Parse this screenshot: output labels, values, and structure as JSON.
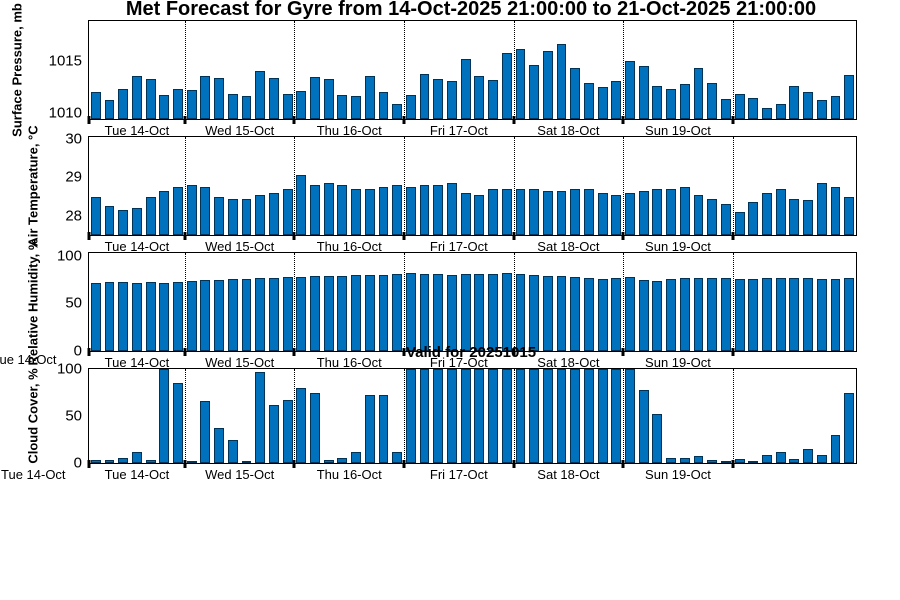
{
  "title": "Met Forecast for Gyre from 14-Oct-2025 21:00:00 to 21-Oct-2025 21:00:00",
  "annotation": "Valid for 20251015",
  "bar_color": "#0072BD",
  "day_labels": [
    "Tue 14-Oct",
    "Wed 15-Oct",
    "Thu 16-Oct",
    "Fri 17-Oct",
    "Sat 18-Oct",
    "Sun 19-Oct"
  ],
  "x": {
    "n_bars": 56,
    "day_boundary_bars": [
      7,
      15,
      23,
      31,
      39,
      47
    ],
    "day_label_centers_bars": [
      3.5,
      11,
      19,
      27,
      35,
      43
    ]
  },
  "chart_data": [
    {
      "type": "bar",
      "ylabel": "Surface Pressure, mb",
      "ylim": [
        1009.4,
        1018.9
      ],
      "yticks": [
        1010,
        1015
      ],
      "grid": "vertical-dotted-day-boundaries",
      "legend": "none",
      "values": [
        1012.0,
        1011.2,
        1012.3,
        1013.6,
        1013.3,
        1011.7,
        1012.3,
        1012.2,
        1013.6,
        1013.4,
        1011.8,
        1011.6,
        1014.1,
        1013.4,
        1011.8,
        1012.1,
        1013.5,
        1013.3,
        1011.7,
        1011.6,
        1013.6,
        1012.0,
        1010.9,
        1011.7,
        1013.8,
        1013.3,
        1013.1,
        1015.2,
        1013.6,
        1013.2,
        1015.8,
        1016.2,
        1014.6,
        1016.0,
        1016.7,
        1014.3,
        1012.9,
        1012.5,
        1013.1,
        1015.0,
        1014.5,
        1012.6,
        1012.3,
        1012.8,
        1014.3,
        1012.9,
        1011.3,
        1011.8,
        1011.4,
        1010.5,
        1010.9,
        1012.6,
        1012.0,
        1011.2,
        1011.6,
        1013.7
      ]
    },
    {
      "type": "bar",
      "ylabel": "Air Temperature, °C",
      "ylim": [
        27.5,
        30.05
      ],
      "yticks": [
        28,
        29,
        30
      ],
      "grid": "vertical-dotted-day-boundaries",
      "legend": "none",
      "values": [
        28.5,
        28.25,
        28.15,
        28.2,
        28.5,
        28.65,
        28.75,
        28.8,
        28.75,
        28.5,
        28.45,
        28.45,
        28.55,
        28.6,
        28.7,
        29.05,
        28.8,
        28.85,
        28.8,
        28.7,
        28.7,
        28.75,
        28.8,
        28.75,
        28.8,
        28.8,
        28.85,
        28.6,
        28.55,
        28.7,
        28.7,
        28.7,
        28.7,
        28.65,
        28.65,
        28.7,
        28.7,
        28.6,
        28.55,
        28.6,
        28.65,
        28.7,
        28.7,
        28.75,
        28.55,
        28.45,
        28.3,
        28.1,
        28.35,
        28.6,
        28.7,
        28.45,
        28.4,
        28.85,
        28.75,
        28.5
      ]
    },
    {
      "type": "bar",
      "ylabel": "Relative Humidity, %",
      "ylim": [
        0,
        103
      ],
      "yticks": [
        0,
        50,
        100
      ],
      "grid": "vertical-dotted-day-boundaries",
      "legend": "none",
      "left_edge_label": "Tue 14-Oct",
      "values": [
        72,
        73,
        73,
        72,
        73,
        72,
        73,
        74,
        75,
        75,
        76,
        76,
        77,
        77,
        78,
        78,
        79,
        79,
        79,
        80,
        80,
        80,
        81,
        82,
        81,
        81,
        80,
        81,
        81,
        81,
        82,
        81,
        80,
        79,
        79,
        78,
        77,
        76,
        77,
        78,
        75,
        74,
        76,
        77,
        77,
        77,
        77,
        76,
        76,
        77,
        77,
        77,
        77,
        76,
        76,
        77
      ]
    },
    {
      "type": "bar",
      "ylabel": "Cloud Cover, %",
      "ylim": [
        0,
        100
      ],
      "yticks": [
        0,
        50,
        100
      ],
      "grid": "vertical-dotted-day-boundaries",
      "legend": "none",
      "left_edge_label": "Tue 14-Oct",
      "values": [
        3,
        3,
        5,
        12,
        3,
        100,
        85,
        1,
        66,
        37,
        25,
        1,
        97,
        62,
        67,
        80,
        75,
        3,
        5,
        12,
        72,
        72,
        12,
        100,
        100,
        100,
        100,
        100,
        100,
        100,
        100,
        100,
        100,
        100,
        100,
        100,
        100,
        100,
        100,
        100,
        78,
        52,
        5,
        5,
        7,
        3,
        2,
        4,
        2,
        8,
        12,
        4,
        15,
        8,
        30,
        75
      ]
    }
  ]
}
